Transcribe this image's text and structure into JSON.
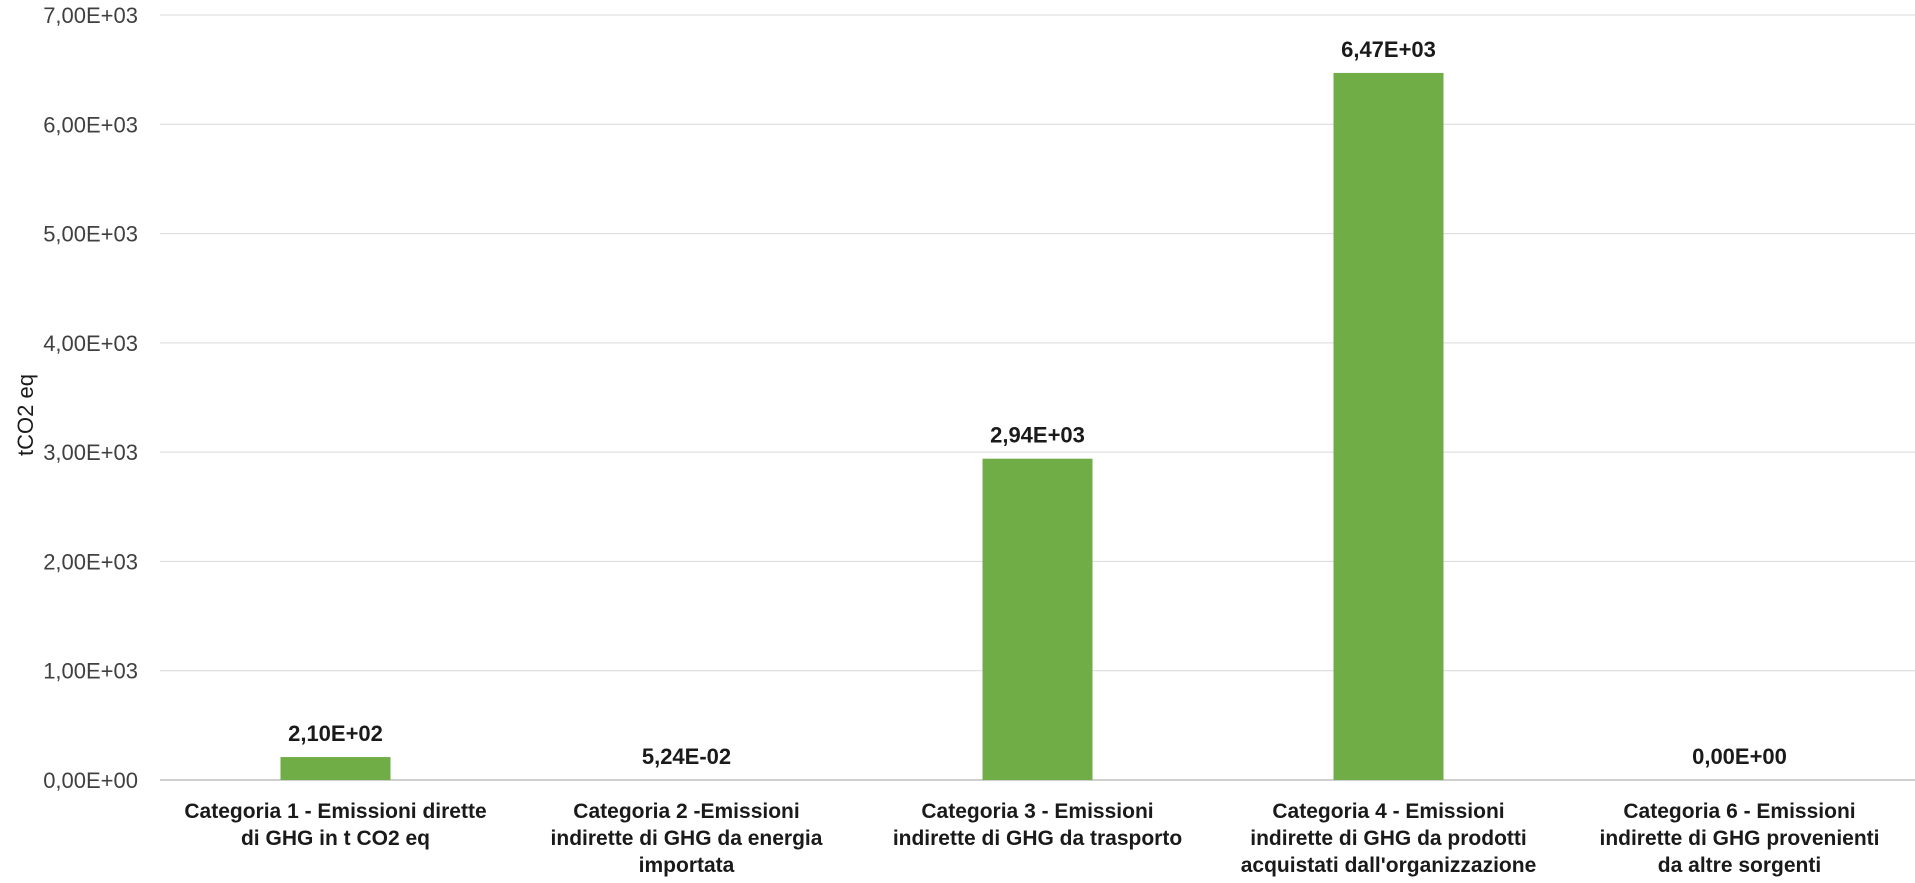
{
  "chart_data": {
    "type": "bar",
    "title": "",
    "xlabel": "",
    "ylabel": "tCO2 eq",
    "ylim": [
      0,
      7000
    ],
    "yticks": [
      0,
      1000,
      2000,
      3000,
      4000,
      5000,
      6000,
      7000
    ],
    "ytick_labels": [
      "0,00E+00",
      "1,00E+03",
      "2,00E+03",
      "3,00E+03",
      "4,00E+03",
      "5,00E+03",
      "6,00E+03",
      "7,00E+03"
    ],
    "grid": true,
    "legend": "none",
    "bar_color": "#70ad47",
    "categories": [
      [
        "Categoria 1 - Emissioni dirette",
        "di GHG in t CO2 eq"
      ],
      [
        "Categoria 2 -Emissioni",
        "indirette di GHG da energia",
        "importata"
      ],
      [
        "Categoria 3 - Emissioni",
        "indirette di GHG da trasporto"
      ],
      [
        "Categoria 4 - Emissioni",
        "indirette di GHG da prodotti",
        "acquistati dall'organizzazione"
      ],
      [
        "Categoria 6 - Emissioni",
        "indirette di GHG provenienti",
        "da altre sorgenti"
      ]
    ],
    "values": [
      210,
      0.0524,
      2940,
      6470,
      0
    ],
    "data_labels": [
      "2,10E+02",
      "5,24E-02",
      "2,94E+03",
      "6,47E+03",
      "0,00E+00"
    ]
  }
}
